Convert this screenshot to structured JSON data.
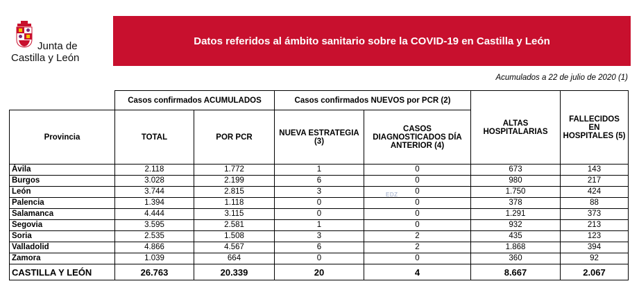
{
  "logo": {
    "line1": "Junta de",
    "line2": "Castilla y León"
  },
  "banner": {
    "title": "Datos referidos al ámbito sanitario sobre la COVID-19 en Castilla y León"
  },
  "note": "Acumulados a 22 de julio de 2020 (1)",
  "headers": {
    "group_acumulados": "Casos confirmados ACUMULADOS",
    "group_nuevos": "Casos confirmados NUEVOS por PCR (2)",
    "provincia": "Provincia",
    "total": "TOTAL",
    "por_pcr": "POR PCR",
    "nueva_estrategia": "NUEVA ESTRATEGIA (3)",
    "casos_diag": "CASOS DIAGNOSTICADOS DÍA ANTERIOR (4)",
    "altas": "ALTAS HOSPITALARIAS",
    "fallecidos": "FALLECIDOS EN HOSPITALES (5)"
  },
  "rows": [
    {
      "provincia": "Ávila",
      "total": "2.118",
      "pcr": "1.772",
      "nueva": "1",
      "diag": "0",
      "altas": "673",
      "fallecidos": "143"
    },
    {
      "provincia": "Burgos",
      "total": "3.028",
      "pcr": "2.199",
      "nueva": "6",
      "diag": "0",
      "altas": "980",
      "fallecidos": "217"
    },
    {
      "provincia": "León",
      "total": "3.744",
      "pcr": "2.815",
      "nueva": "3",
      "diag": "0",
      "altas": "1.750",
      "fallecidos": "424"
    },
    {
      "provincia": "Palencia",
      "total": "1.394",
      "pcr": "1.118",
      "nueva": "0",
      "diag": "0",
      "altas": "378",
      "fallecidos": "88"
    },
    {
      "provincia": "Salamanca",
      "total": "4.444",
      "pcr": "3.115",
      "nueva": "0",
      "diag": "0",
      "altas": "1.291",
      "fallecidos": "373"
    },
    {
      "provincia": "Segovia",
      "total": "3.595",
      "pcr": "2.581",
      "nueva": "1",
      "diag": "0",
      "altas": "932",
      "fallecidos": "213"
    },
    {
      "provincia": "Soria",
      "total": "2.535",
      "pcr": "1.508",
      "nueva": "3",
      "diag": "2",
      "altas": "435",
      "fallecidos": "123"
    },
    {
      "provincia": "Valladolid",
      "total": "4.866",
      "pcr": "4.567",
      "nueva": "6",
      "diag": "2",
      "altas": "1.868",
      "fallecidos": "394"
    },
    {
      "provincia": "Zamora",
      "total": "1.039",
      "pcr": "664",
      "nueva": "0",
      "diag": "0",
      "altas": "360",
      "fallecidos": "92"
    }
  ],
  "totals": {
    "provincia": "CASTILLA Y LEÓN",
    "total": "26.763",
    "pcr": "20.339",
    "nueva": "20",
    "diag": "4",
    "altas": "8.667",
    "fallecidos": "2.067"
  },
  "watermark": "EDZ",
  "colors": {
    "banner": "#c8102e"
  }
}
